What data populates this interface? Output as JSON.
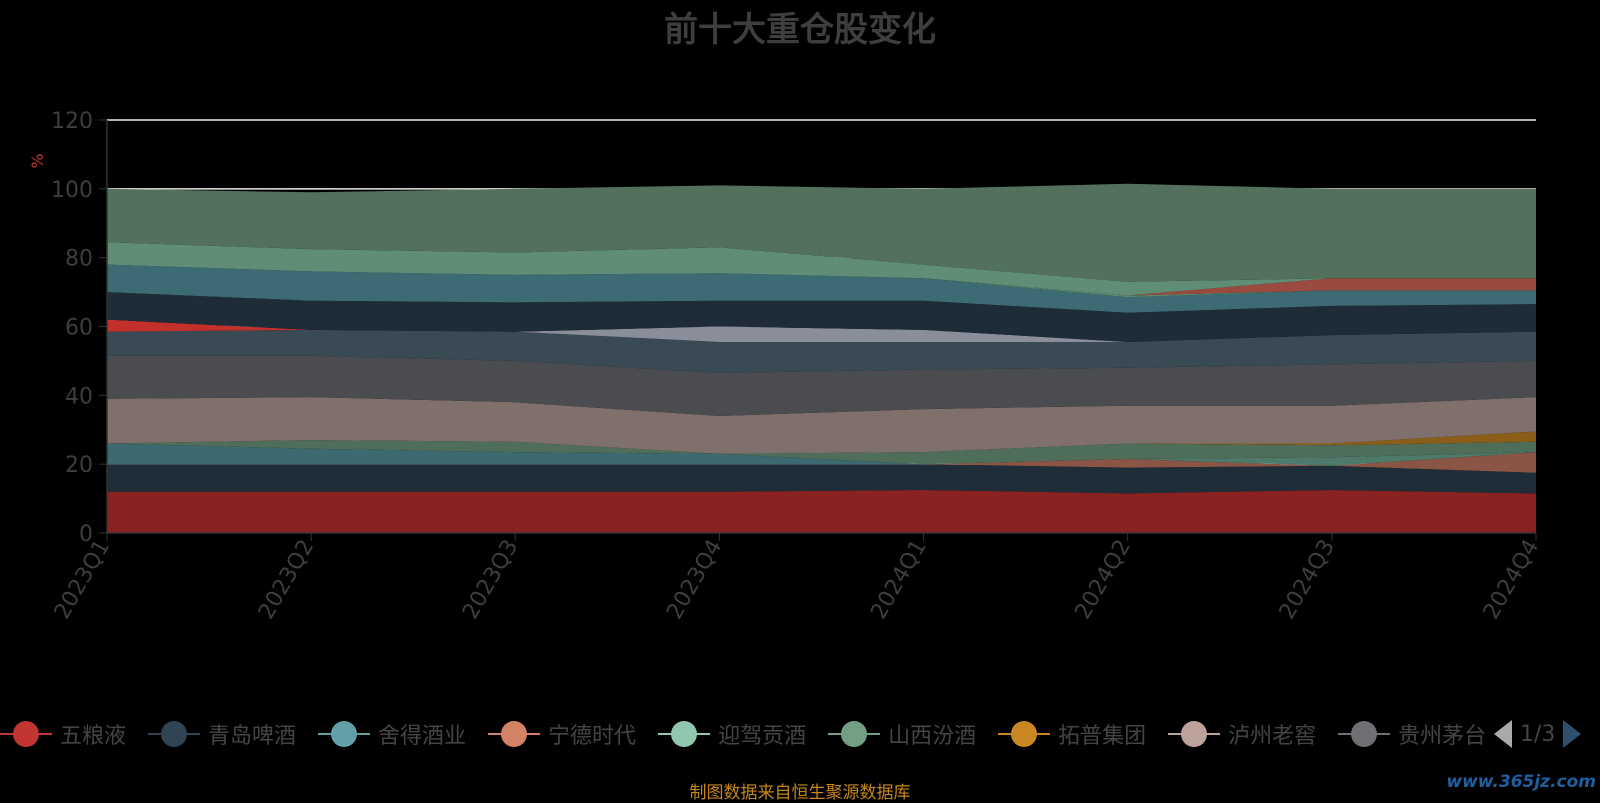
{
  "title": "前十大重仓股变化",
  "y_unit": "%",
  "source_note": "制图数据来自恒生聚源数据库",
  "watermark": "www.365jz.com",
  "legend": {
    "items": [
      {
        "label": "五粮液",
        "color": "#c23531"
      },
      {
        "label": "青岛啤酒",
        "color": "#2f4554"
      },
      {
        "label": "舍得酒业",
        "color": "#61a0a8"
      },
      {
        "label": "宁德时代",
        "color": "#d48265"
      },
      {
        "label": "迎驾贡酒",
        "color": "#91c7ae"
      },
      {
        "label": "山西汾酒",
        "color": "#749f83"
      },
      {
        "label": "拓普集团",
        "color": "#ca8622"
      },
      {
        "label": "泸州老窖",
        "color": "#bda29a"
      },
      {
        "label": "贵州茅台",
        "color": "#6e7074"
      }
    ],
    "page_info": "1/3"
  },
  "chart_data": {
    "type": "area",
    "stacked": true,
    "categories": [
      "2023Q1",
      "2023Q2",
      "2023Q3",
      "2023Q4",
      "2024Q1",
      "2024Q2",
      "2024Q3",
      "2024Q4"
    ],
    "ylabel": "%",
    "ylim": [
      0,
      120
    ],
    "yticks": [
      0,
      20,
      40,
      60,
      80,
      100,
      120
    ],
    "grid": true,
    "series": [
      {
        "name": "五粮液",
        "color": "#8b2222",
        "values": [
          12,
          12,
          12,
          12,
          12.5,
          11.5,
          12.5,
          11.5
        ]
      },
      {
        "name": "青岛啤酒",
        "color": "#1f2d38",
        "values": [
          8,
          8,
          8,
          8,
          7.5,
          7.5,
          7,
          6
        ]
      },
      {
        "name": "舍得酒业",
        "color": "#3d6a70",
        "values": [
          6,
          4.5,
          3.5,
          3,
          0,
          0,
          0,
          0
        ]
      },
      {
        "name": "宁德时代",
        "color": "#8a5545",
        "values": [
          0,
          0,
          0,
          0,
          0,
          2.5,
          0,
          6
        ]
      },
      {
        "name": "迎驾贡酒",
        "color": "#4e7a6c",
        "values": [
          0,
          0,
          0,
          0,
          0,
          0,
          2.5,
          0
        ]
      },
      {
        "name": "山西汾酒",
        "color": "#4f6e5a",
        "values": [
          0,
          2.5,
          3,
          0,
          3.5,
          4.5,
          3.5,
          3
        ]
      },
      {
        "name": "拓普集团",
        "color": "#8a5e18",
        "values": [
          0,
          0,
          0,
          0,
          0,
          0,
          0.5,
          3
        ]
      },
      {
        "name": "泸州老窖",
        "color": "#80706c",
        "values": [
          13,
          12.5,
          11.5,
          11,
          12.5,
          11,
          11,
          10
        ]
      },
      {
        "name": "贵州茅台",
        "color": "#4a4c50",
        "values": [
          12.5,
          12,
          12,
          12.5,
          11.5,
          11,
          12,
          10.5
        ]
      },
      {
        "name": "",
        "color": "#3a4a55",
        "values": [
          7,
          7.5,
          8.5,
          9,
          8,
          7.5,
          8.5,
          8.5
        ]
      },
      {
        "name": "",
        "color": "#8a8d9a",
        "values": [
          0,
          0,
          0,
          4.5,
          3.5,
          0,
          0,
          0
        ]
      },
      {
        "name": "",
        "color": "#c2302c",
        "values": [
          3.5,
          0,
          0,
          0,
          0,
          0,
          0,
          0
        ]
      },
      {
        "name": "",
        "color": "#1e2c37",
        "values": [
          8,
          8.5,
          8.5,
          7.5,
          8.5,
          8.5,
          8.5,
          8
        ]
      },
      {
        "name": "",
        "color": "#3d6b74",
        "values": [
          8,
          8.5,
          8,
          8,
          6.5,
          4.5,
          4.5,
          4
        ]
      },
      {
        "name": "",
        "color": "#5a8a6e",
        "values": [
          0,
          0,
          0,
          0,
          0,
          0.5,
          0,
          0
        ]
      },
      {
        "name": "",
        "color": "#9a4a3e",
        "values": [
          0,
          0,
          0,
          0,
          0,
          0,
          3.5,
          3.5
        ]
      },
      {
        "name": "",
        "color": "#5f8d75",
        "values": [
          6.5,
          6.5,
          6.5,
          7.5,
          4,
          4,
          0,
          0
        ]
      },
      {
        "name": "",
        "color": "#52705c",
        "values": [
          15.5,
          16.5,
          18.5,
          18,
          22,
          28.5,
          26,
          26
        ]
      }
    ]
  }
}
